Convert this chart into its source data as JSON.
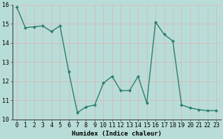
{
  "x": [
    0,
    1,
    2,
    3,
    4,
    5,
    6,
    7,
    8,
    9,
    10,
    11,
    12,
    13,
    14,
    15,
    16,
    17,
    18,
    19,
    20,
    21,
    22,
    23
  ],
  "y": [
    15.9,
    14.8,
    14.85,
    14.9,
    14.6,
    14.9,
    12.5,
    10.35,
    10.65,
    10.75,
    11.9,
    12.25,
    11.5,
    11.5,
    12.25,
    10.85,
    15.1,
    14.45,
    14.1,
    10.75,
    10.6,
    10.5,
    10.45,
    10.45
  ],
  "line_color": "#2d7d6e",
  "marker": "D",
  "marker_size": 2.0,
  "bg_color": "#b8ddd8",
  "grid_color_major": "#d8b8b8",
  "grid_color_minor": "#d8b8b8",
  "xlabel": "Humidex (Indice chaleur)",
  "xlim": [
    -0.5,
    23.5
  ],
  "ylim": [
    10,
    16
  ],
  "yticks": [
    10,
    11,
    12,
    13,
    14,
    15,
    16
  ],
  "xticks": [
    0,
    1,
    2,
    3,
    4,
    5,
    6,
    7,
    8,
    9,
    10,
    11,
    12,
    13,
    14,
    15,
    16,
    17,
    18,
    19,
    20,
    21,
    22,
    23
  ],
  "label_fontsize": 6.5,
  "tick_fontsize": 6.0,
  "line_width": 1.0
}
